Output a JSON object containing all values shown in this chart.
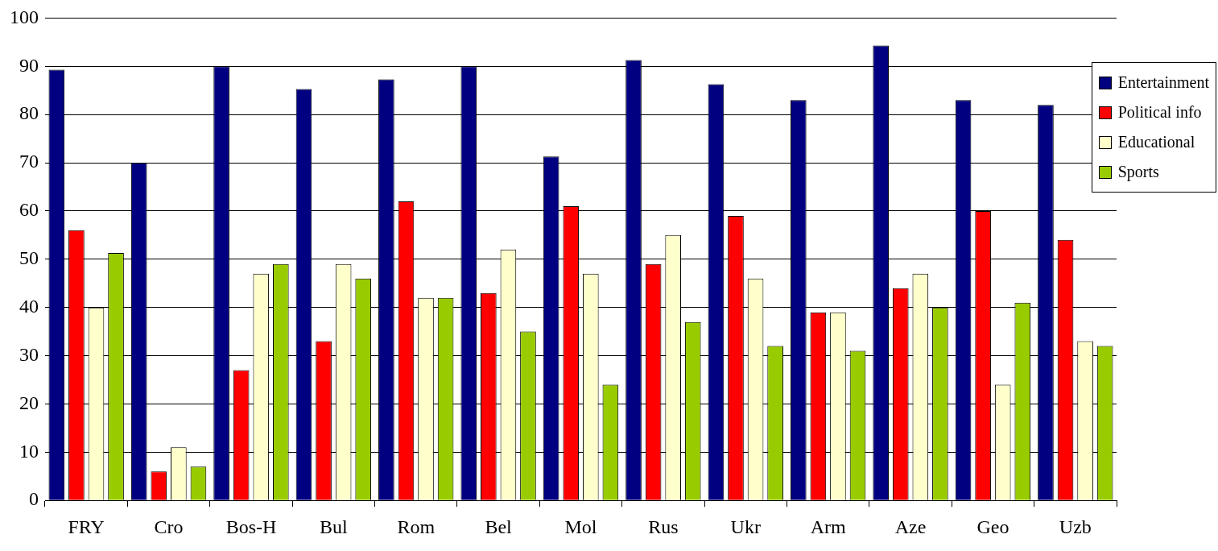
{
  "chart_data": {
    "type": "bar",
    "categories": [
      "FRY",
      "Cro",
      "Bos-H",
      "Bul",
      "Rom",
      "Bel",
      "Mol",
      "Rus",
      "Ukr",
      "Arm",
      "Aze",
      "Geo",
      "Uzb"
    ],
    "series": [
      {
        "name": "Entertainment",
        "color": "#000080",
        "values": [
          89.3,
          70,
          90,
          85.3,
          87.3,
          90,
          71.3,
          91.3,
          86.3,
          83,
          94.3,
          83,
          82
        ]
      },
      {
        "name": "Political info",
        "color": "#ff0000",
        "values": [
          56,
          6,
          27,
          33,
          62,
          43,
          61,
          49,
          59,
          39,
          44,
          60,
          54
        ]
      },
      {
        "name": "Educational",
        "color": "#ffffcc",
        "values": [
          40,
          11,
          47,
          49,
          42,
          52,
          47,
          55,
          46,
          39,
          47,
          24,
          33
        ]
      },
      {
        "name": "Sports",
        "color": "#99cc00",
        "values": [
          51.3,
          7,
          49,
          46,
          42,
          35,
          24,
          37,
          32,
          31,
          40,
          41,
          32
        ]
      }
    ],
    "ylim": [
      0,
      100
    ],
    "yticks": [
      0,
      10,
      20,
      30,
      40,
      50,
      60,
      70,
      80,
      90,
      100
    ],
    "grid": "y",
    "legend": "top right"
  }
}
